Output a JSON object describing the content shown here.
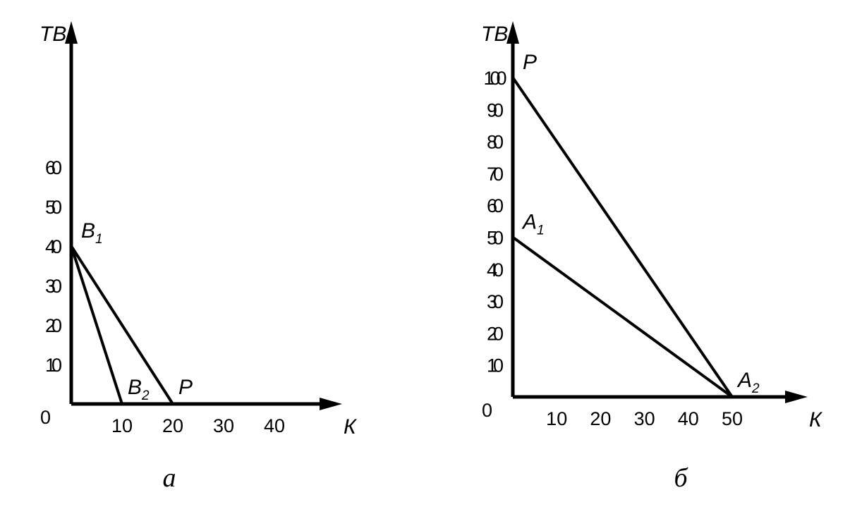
{
  "chart_data": [
    {
      "type": "line",
      "caption": "а",
      "xlabel": "К",
      "ylabel": "ТВ",
      "xticks": [
        "10",
        "20",
        "30",
        "40"
      ],
      "yticks": [
        "10",
        "20",
        "30",
        "40",
        "50",
        "60"
      ],
      "origin_label": "0",
      "xlim": [
        0,
        50
      ],
      "ylim": [
        0,
        70
      ],
      "series": [
        {
          "points": [
            [
              0,
              40
            ],
            [
              10,
              0
            ]
          ]
        },
        {
          "points": [
            [
              0,
              40
            ],
            [
              20,
              0
            ]
          ]
        }
      ],
      "annotations": [
        {
          "text": "B",
          "sub": "1",
          "x": 0,
          "y": 40
        },
        {
          "text": "B",
          "sub": "2",
          "x": 10,
          "y": 0
        },
        {
          "text": "P",
          "sub": "",
          "x": 20,
          "y": 0
        }
      ]
    },
    {
      "type": "line",
      "caption": "б",
      "xlabel": "К",
      "ylabel": "ТВ",
      "xticks": [
        "10",
        "20",
        "30",
        "40",
        "50"
      ],
      "yticks": [
        "10",
        "20",
        "30",
        "40",
        "50",
        "60",
        "70",
        "80",
        "90",
        "100"
      ],
      "origin_label": "0",
      "xlim": [
        0,
        65
      ],
      "ylim": [
        0,
        115
      ],
      "series": [
        {
          "points": [
            [
              0,
              100
            ],
            [
              50,
              0
            ]
          ]
        },
        {
          "points": [
            [
              0,
              50
            ],
            [
              50,
              0
            ]
          ]
        }
      ],
      "annotations": [
        {
          "text": "P",
          "sub": "",
          "x": 0,
          "y": 100
        },
        {
          "text": "A",
          "sub": "1",
          "x": 0,
          "y": 50
        },
        {
          "text": "A",
          "sub": "2",
          "x": 50,
          "y": 0
        }
      ]
    }
  ]
}
